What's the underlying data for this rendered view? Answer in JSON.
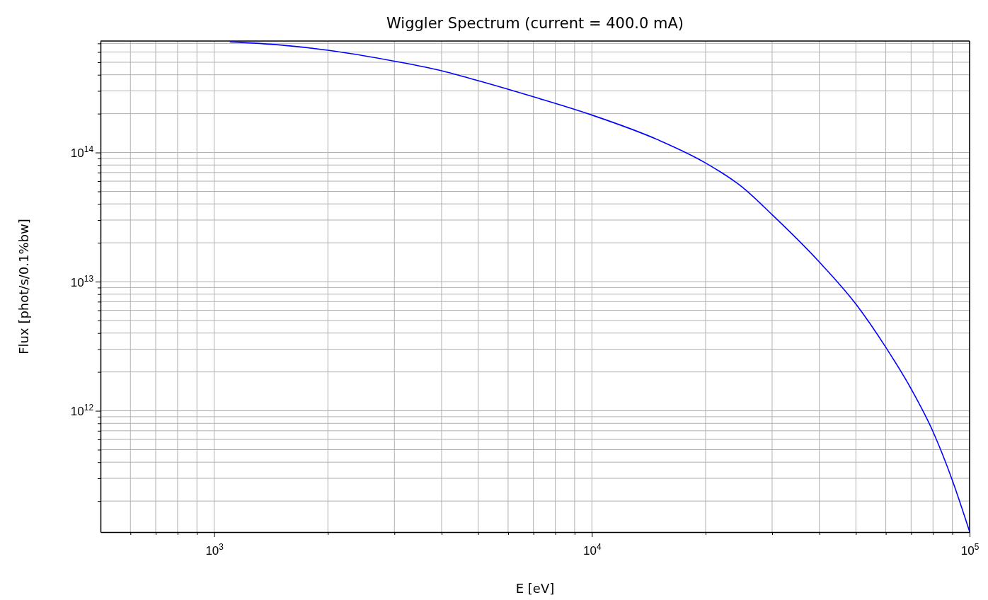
{
  "chart_data": {
    "type": "line",
    "title": "Wiggler Spectrum (current = 400.0 mA)",
    "xlabel": "E [eV]",
    "ylabel": "Flux [phot/s/0.1%bw]",
    "log": "xy",
    "grid": true,
    "marker": "none",
    "line_style": "solid",
    "xlim": [
      500,
      100000
    ],
    "ylim": [
      115000000000.0,
      730000000000000.0
    ],
    "xticks": [
      {
        "value": 600,
        "label": null
      },
      {
        "value": 700,
        "label": null
      },
      {
        "value": 800,
        "label": null
      },
      {
        "value": 900,
        "label": null
      },
      {
        "value": 1000,
        "label": "10$^{3}$"
      },
      {
        "value": 2000,
        "label": null
      },
      {
        "value": 3000,
        "label": null
      },
      {
        "value": 4000,
        "label": null
      },
      {
        "value": 5000,
        "label": null
      },
      {
        "value": 6000,
        "label": null
      },
      {
        "value": 7000,
        "label": null
      },
      {
        "value": 8000,
        "label": null
      },
      {
        "value": 9000,
        "label": null
      },
      {
        "value": 10000,
        "label": "10$^{4}$"
      },
      {
        "value": 20000,
        "label": null
      },
      {
        "value": 30000,
        "label": null
      },
      {
        "value": 40000,
        "label": null
      },
      {
        "value": 50000,
        "label": null
      },
      {
        "value": 60000,
        "label": null
      },
      {
        "value": 70000,
        "label": null
      },
      {
        "value": 80000,
        "label": null
      },
      {
        "value": 90000,
        "label": null
      },
      {
        "value": 100000,
        "label": "10$^{5}$"
      }
    ],
    "yticks": [
      {
        "value": 200000000000.0,
        "label": null
      },
      {
        "value": 300000000000.0,
        "label": null
      },
      {
        "value": 400000000000.0,
        "label": null
      },
      {
        "value": 500000000000.0,
        "label": null
      },
      {
        "value": 600000000000.0,
        "label": null
      },
      {
        "value": 700000000000.0,
        "label": null
      },
      {
        "value": 800000000000.0,
        "label": null
      },
      {
        "value": 900000000000.0,
        "label": null
      },
      {
        "value": 1000000000000.0,
        "label": "10$^{12}$"
      },
      {
        "value": 2000000000000.0,
        "label": null
      },
      {
        "value": 3000000000000.0,
        "label": null
      },
      {
        "value": 4000000000000.0,
        "label": null
      },
      {
        "value": 5000000000000.0,
        "label": null
      },
      {
        "value": 6000000000000.0,
        "label": null
      },
      {
        "value": 7000000000000.0,
        "label": null
      },
      {
        "value": 8000000000000.0,
        "label": null
      },
      {
        "value": 9000000000000.0,
        "label": null
      },
      {
        "value": 10000000000000.0,
        "label": "10$^{13}$"
      },
      {
        "value": 20000000000000.0,
        "label": null
      },
      {
        "value": 30000000000000.0,
        "label": null
      },
      {
        "value": 40000000000000.0,
        "label": null
      },
      {
        "value": 50000000000000.0,
        "label": null
      },
      {
        "value": 60000000000000.0,
        "label": null
      },
      {
        "value": 70000000000000.0,
        "label": null
      },
      {
        "value": 80000000000000.0,
        "label": null
      },
      {
        "value": 90000000000000.0,
        "label": null
      },
      {
        "value": 100000000000000.0,
        "label": "10$^{14}$"
      },
      {
        "value": 200000000000000.0,
        "label": null
      },
      {
        "value": 300000000000000.0,
        "label": null
      },
      {
        "value": 400000000000000.0,
        "label": null
      },
      {
        "value": 500000000000000.0,
        "label": null
      },
      {
        "value": 600000000000000.0,
        "label": null
      },
      {
        "value": 700000000000000.0,
        "label": null
      }
    ],
    "x": [
      1100,
      1500,
      2000,
      3000,
      4000,
      5000,
      7000,
      10000,
      15000,
      20000,
      25000,
      30000,
      40000,
      50000,
      60000,
      70000,
      80000,
      90000,
      100000
    ],
    "series": [
      {
        "color": "#0000ff",
        "values": [
          720000000000000.0,
          680000000000000.0,
          620000000000000.0,
          510000000000000.0,
          430000000000000.0,
          360000000000000.0,
          270000000000000.0,
          195000000000000.0,
          125000000000000.0,
          83000000000000.0,
          54000000000000.0,
          33000000000000.0,
          14200000000000.0,
          6700000000000.0,
          3100000000000.0,
          1480000000000.0,
          690000000000.0,
          290000000000.0,
          116000000000.0
        ]
      }
    ]
  }
}
